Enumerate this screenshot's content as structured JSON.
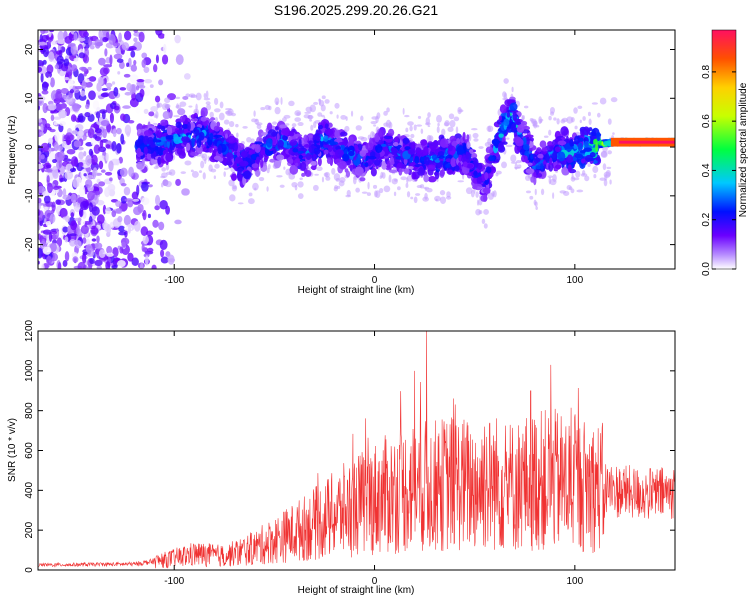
{
  "title": "S196.2025.299.20.26.G21",
  "chart_data": [
    {
      "type": "heatmap",
      "title": "S196.2025.299.20.26.G21",
      "xlabel": "Height of straight line (km)",
      "ylabel": "Frequency (Hz)",
      "xlim": [
        -168,
        150
      ],
      "ylim": [
        -25,
        24
      ],
      "xticks": [
        -100,
        0,
        100
      ],
      "xtick_labels": [
        "-100",
        "0",
        "100"
      ],
      "yticks": [
        -20,
        -10,
        0,
        10,
        20
      ],
      "ytick_labels": [
        "-20",
        "-10",
        "0",
        "10",
        "20"
      ],
      "colorbar": {
        "label": "Normalized spectral amplitude",
        "range": [
          0.0,
          0.97
        ],
        "ticks": [
          0.0,
          0.2,
          0.4,
          0.6,
          0.8
        ],
        "tick_labels": [
          "0.0",
          "0.2",
          "0.4",
          "0.6",
          "0.8"
        ]
      },
      "ridge": [
        {
          "x": -115,
          "f": 0.0,
          "amp": 0.3
        },
        {
          "x": -95,
          "f": 2.0,
          "amp": 0.35
        },
        {
          "x": -85,
          "f": 3.0,
          "amp": 0.35
        },
        {
          "x": -75,
          "f": 0.0,
          "amp": 0.3
        },
        {
          "x": -65,
          "f": -4.0,
          "amp": 0.3
        },
        {
          "x": -55,
          "f": 0.0,
          "amp": 0.3
        },
        {
          "x": -45,
          "f": 1.0,
          "amp": 0.3
        },
        {
          "x": -35,
          "f": -2.0,
          "amp": 0.3
        },
        {
          "x": -25,
          "f": 2.0,
          "amp": 0.35
        },
        {
          "x": -15,
          "f": -1.0,
          "amp": 0.3
        },
        {
          "x": -5,
          "f": -3.0,
          "amp": 0.3
        },
        {
          "x": 5,
          "f": 0.0,
          "amp": 0.3
        },
        {
          "x": 15,
          "f": -1.5,
          "amp": 0.3
        },
        {
          "x": 25,
          "f": -2.5,
          "amp": 0.3
        },
        {
          "x": 35,
          "f": -2.0,
          "amp": 0.35
        },
        {
          "x": 45,
          "f": -1.0,
          "amp": 0.3
        },
        {
          "x": 55,
          "f": -8.0,
          "amp": 0.25
        },
        {
          "x": 62,
          "f": 2.0,
          "amp": 0.4
        },
        {
          "x": 68,
          "f": 7.0,
          "amp": 0.45
        },
        {
          "x": 73,
          "f": 2.0,
          "amp": 0.3
        },
        {
          "x": 80,
          "f": -4.0,
          "amp": 0.3
        },
        {
          "x": 90,
          "f": -1.0,
          "amp": 0.35
        },
        {
          "x": 100,
          "f": -1.0,
          "amp": 0.4
        },
        {
          "x": 110,
          "f": 0.5,
          "amp": 0.55
        },
        {
          "x": 120,
          "f": 1.0,
          "amp": 0.85
        },
        {
          "x": 130,
          "f": 1.0,
          "amp": 0.95
        },
        {
          "x": 150,
          "f": 1.0,
          "amp": 0.95
        }
      ]
    },
    {
      "type": "line",
      "xlabel": "Height of straight line (km)",
      "ylabel": "SNR (10 * v/v)",
      "xlim": [
        -168,
        150
      ],
      "ylim": [
        0,
        1200
      ],
      "xticks": [
        -100,
        0,
        100
      ],
      "xtick_labels": [
        "-100",
        "0",
        "100"
      ],
      "yticks": [
        0,
        200,
        400,
        600,
        800,
        1000,
        1200
      ],
      "ytick_labels": [
        "0",
        "200",
        "400",
        "600",
        "800",
        "1000",
        "1200"
      ],
      "color": "#f03232",
      "envelope": {
        "x": [
          -168,
          -120,
          -105,
          -90,
          -75,
          -60,
          -45,
          -30,
          -15,
          0,
          10,
          20,
          30,
          40,
          50,
          60,
          70,
          80,
          90,
          100,
          110,
          120,
          135,
          150
        ],
        "y": [
          25,
          30,
          50,
          80,
          70,
          110,
          170,
          230,
          300,
          360,
          390,
          420,
          420,
          440,
          420,
          440,
          420,
          450,
          450,
          430,
          420,
          400,
          380,
          390
        ]
      },
      "spikes": [
        {
          "x": 20,
          "y": 1000
        },
        {
          "x": 26,
          "y": 1200
        },
        {
          "x": 55,
          "y": 720
        },
        {
          "x": 78,
          "y": 900
        },
        {
          "x": 88,
          "y": 1030
        }
      ]
    }
  ]
}
